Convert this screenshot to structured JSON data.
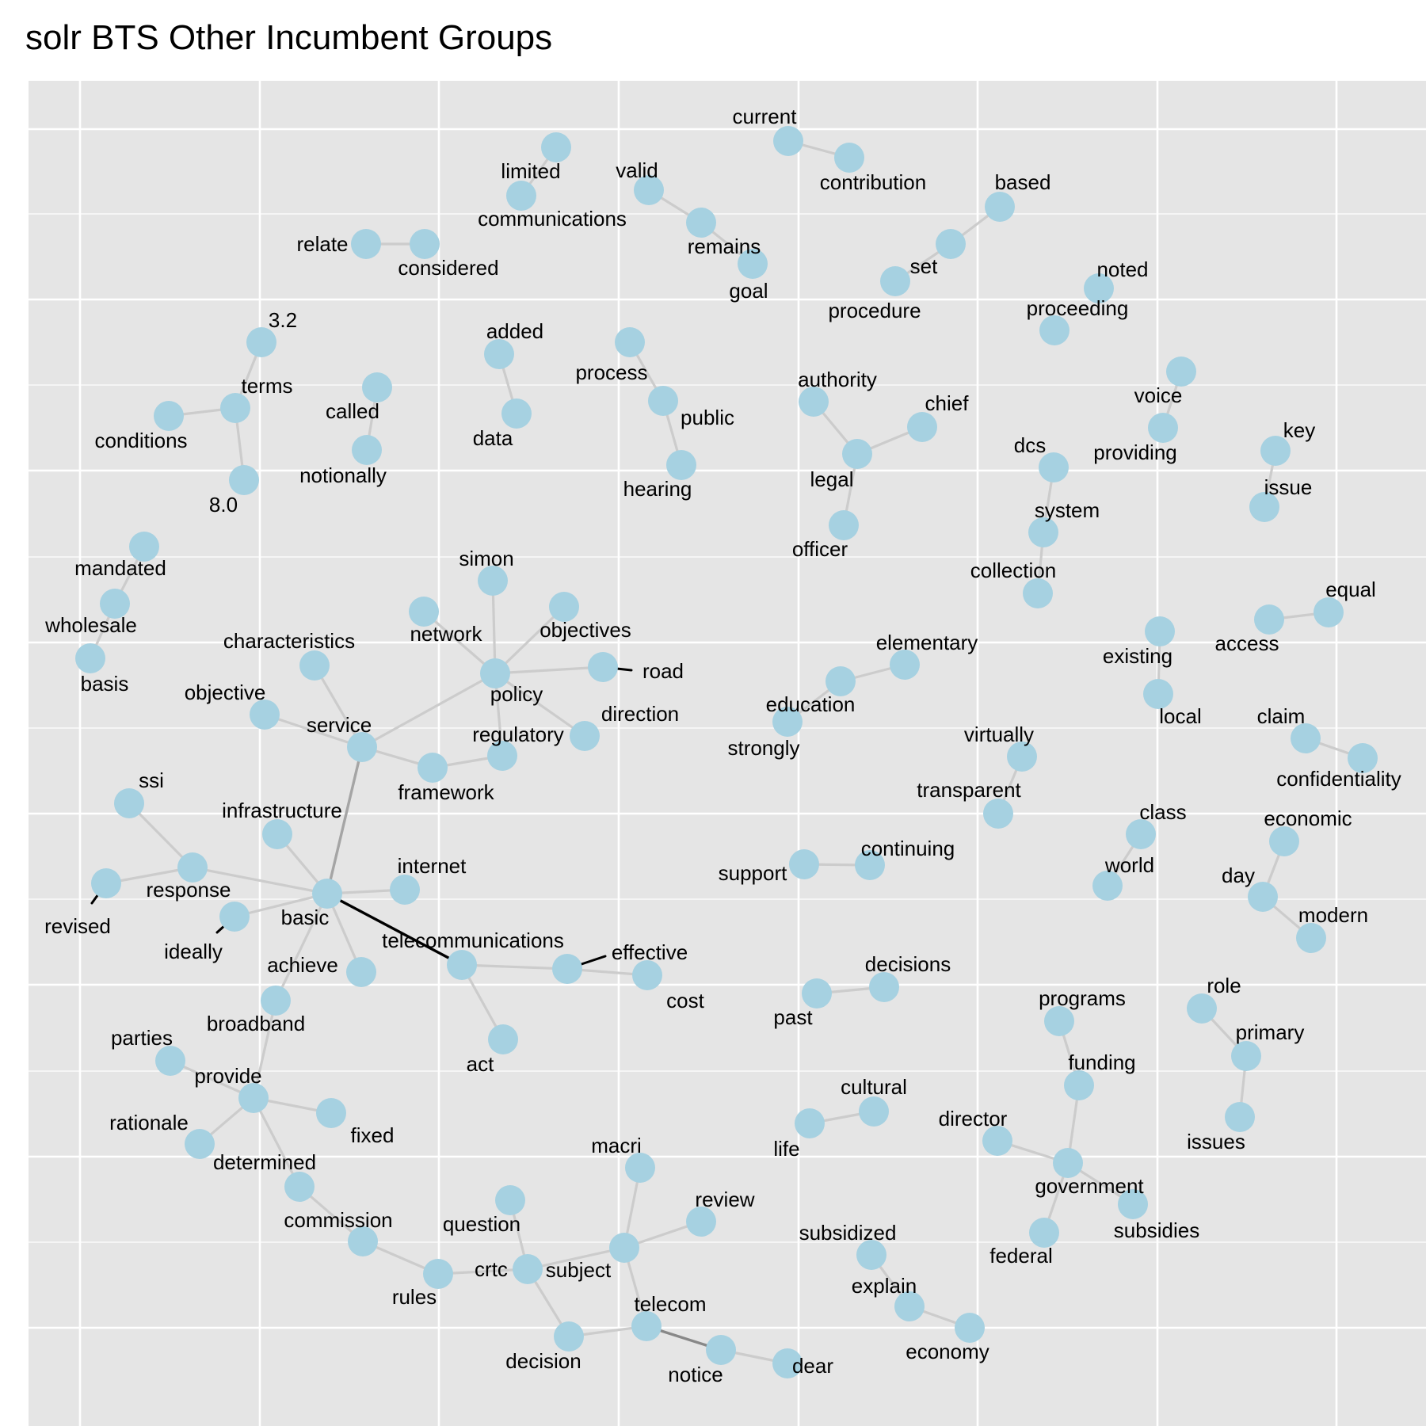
{
  "title": "solr BTS Other Incumbent Groups",
  "colors": {
    "panel": "#e5e5e5",
    "node": "#a6d1e1",
    "edge_light": "#cccccc",
    "edge_mid": "#a5a5a5",
    "edge_dark": "#888888",
    "leader": "#000000"
  },
  "nodes": [
    {
      "id": "current"
    },
    {
      "id": "contribution"
    },
    {
      "id": "limited"
    },
    {
      "id": "communications"
    },
    {
      "id": "relate"
    },
    {
      "id": "considered"
    },
    {
      "id": "valid"
    },
    {
      "id": "remains"
    },
    {
      "id": "goal"
    },
    {
      "id": "based"
    },
    {
      "id": "set"
    },
    {
      "id": "procedure"
    },
    {
      "id": "noted"
    },
    {
      "id": "proceeding"
    },
    {
      "id": "3.2"
    },
    {
      "id": "terms"
    },
    {
      "id": "conditions"
    },
    {
      "id": "8.0"
    },
    {
      "id": "called"
    },
    {
      "id": "notionally"
    },
    {
      "id": "added"
    },
    {
      "id": "data"
    },
    {
      "id": "process"
    },
    {
      "id": "public"
    },
    {
      "id": "hearing"
    },
    {
      "id": "authority"
    },
    {
      "id": "chief"
    },
    {
      "id": "legal"
    },
    {
      "id": "officer"
    },
    {
      "id": "voice"
    },
    {
      "id": "providing"
    },
    {
      "id": "dcs"
    },
    {
      "id": "system"
    },
    {
      "id": "collection"
    },
    {
      "id": "key"
    },
    {
      "id": "issue"
    },
    {
      "id": "mandated"
    },
    {
      "id": "wholesale"
    },
    {
      "id": "basis"
    },
    {
      "id": "simon"
    },
    {
      "id": "network"
    },
    {
      "id": "objectives"
    },
    {
      "id": "policy"
    },
    {
      "id": "road"
    },
    {
      "id": "direction"
    },
    {
      "id": "regulatory"
    },
    {
      "id": "characteristics"
    },
    {
      "id": "objective"
    },
    {
      "id": "service"
    },
    {
      "id": "framework"
    },
    {
      "id": "elementary"
    },
    {
      "id": "education"
    },
    {
      "id": "strongly"
    },
    {
      "id": "existing"
    },
    {
      "id": "local"
    },
    {
      "id": "access"
    },
    {
      "id": "equal"
    },
    {
      "id": "claim"
    },
    {
      "id": "confidentiality"
    },
    {
      "id": "virtually"
    },
    {
      "id": "transparent"
    },
    {
      "id": "ssi"
    },
    {
      "id": "infrastructure"
    },
    {
      "id": "response"
    },
    {
      "id": "revised"
    },
    {
      "id": "basic"
    },
    {
      "id": "internet"
    },
    {
      "id": "ideally"
    },
    {
      "id": "achieve"
    },
    {
      "id": "telecommunications"
    },
    {
      "id": "effective"
    },
    {
      "id": "cost"
    },
    {
      "id": "act"
    },
    {
      "id": "support"
    },
    {
      "id": "continuing"
    },
    {
      "id": "class"
    },
    {
      "id": "world"
    },
    {
      "id": "economic"
    },
    {
      "id": "day"
    },
    {
      "id": "modern"
    },
    {
      "id": "broadband"
    },
    {
      "id": "decisions"
    },
    {
      "id": "past"
    },
    {
      "id": "programs"
    },
    {
      "id": "funding"
    },
    {
      "id": "role"
    },
    {
      "id": "primary"
    },
    {
      "id": "issues"
    },
    {
      "id": "parties"
    },
    {
      "id": "provide"
    },
    {
      "id": "fixed"
    },
    {
      "id": "rationale"
    },
    {
      "id": "determined"
    },
    {
      "id": "commission"
    },
    {
      "id": "rules"
    },
    {
      "id": "cultural"
    },
    {
      "id": "life"
    },
    {
      "id": "director"
    },
    {
      "id": "government"
    },
    {
      "id": "subsidies"
    },
    {
      "id": "federal"
    },
    {
      "id": "macri"
    },
    {
      "id": "review"
    },
    {
      "id": "question"
    },
    {
      "id": "subject"
    },
    {
      "id": "crtc"
    },
    {
      "id": "telecom"
    },
    {
      "id": "decision"
    },
    {
      "id": "notice"
    },
    {
      "id": "dear"
    },
    {
      "id": "subsidized"
    },
    {
      "id": "explain"
    },
    {
      "id": "economy"
    }
  ],
  "edges": [
    {
      "from": "current",
      "to": "contribution"
    },
    {
      "from": "limited",
      "to": "communications"
    },
    {
      "from": "relate",
      "to": "considered"
    },
    {
      "from": "valid",
      "to": "remains"
    },
    {
      "from": "remains",
      "to": "goal"
    },
    {
      "from": "based",
      "to": "set"
    },
    {
      "from": "set",
      "to": "procedure"
    },
    {
      "from": "3.2",
      "to": "terms"
    },
    {
      "from": "terms",
      "to": "conditions"
    },
    {
      "from": "terms",
      "to": "8.0"
    },
    {
      "from": "called",
      "to": "notionally"
    },
    {
      "from": "added",
      "to": "data"
    },
    {
      "from": "process",
      "to": "public"
    },
    {
      "from": "public",
      "to": "hearing"
    },
    {
      "from": "authority",
      "to": "legal"
    },
    {
      "from": "chief",
      "to": "legal"
    },
    {
      "from": "legal",
      "to": "officer"
    },
    {
      "from": "voice",
      "to": "providing"
    },
    {
      "from": "dcs",
      "to": "system"
    },
    {
      "from": "system",
      "to": "collection"
    },
    {
      "from": "key",
      "to": "issue"
    },
    {
      "from": "mandated",
      "to": "wholesale"
    },
    {
      "from": "wholesale",
      "to": "basis"
    },
    {
      "from": "simon",
      "to": "policy"
    },
    {
      "from": "network",
      "to": "policy"
    },
    {
      "from": "objectives",
      "to": "policy"
    },
    {
      "from": "policy",
      "to": "road"
    },
    {
      "from": "policy",
      "to": "direction"
    },
    {
      "from": "policy",
      "to": "regulatory"
    },
    {
      "from": "policy",
      "to": "service"
    },
    {
      "from": "characteristics",
      "to": "service"
    },
    {
      "from": "objective",
      "to": "service"
    },
    {
      "from": "service",
      "to": "framework"
    },
    {
      "from": "framework",
      "to": "regulatory"
    },
    {
      "from": "service",
      "to": "basic",
      "weight": "mid"
    },
    {
      "from": "elementary",
      "to": "education"
    },
    {
      "from": "education",
      "to": "strongly"
    },
    {
      "from": "existing",
      "to": "local"
    },
    {
      "from": "access",
      "to": "equal"
    },
    {
      "from": "claim",
      "to": "confidentiality"
    },
    {
      "from": "virtually",
      "to": "transparent"
    },
    {
      "from": "ssi",
      "to": "response"
    },
    {
      "from": "response",
      "to": "revised"
    },
    {
      "from": "response",
      "to": "basic"
    },
    {
      "from": "infrastructure",
      "to": "basic"
    },
    {
      "from": "basic",
      "to": "internet"
    },
    {
      "from": "basic",
      "to": "ideally"
    },
    {
      "from": "basic",
      "to": "achieve"
    },
    {
      "from": "basic",
      "to": "broadband"
    },
    {
      "from": "basic",
      "to": "telecommunications",
      "weight": "dark"
    },
    {
      "from": "telecommunications",
      "to": "effective"
    },
    {
      "from": "effective",
      "to": "cost"
    },
    {
      "from": "telecommunications",
      "to": "act"
    },
    {
      "from": "support",
      "to": "continuing"
    },
    {
      "from": "class",
      "to": "world"
    },
    {
      "from": "economic",
      "to": "day"
    },
    {
      "from": "day",
      "to": "modern"
    },
    {
      "from": "broadband",
      "to": "provide"
    },
    {
      "from": "past",
      "to": "decisions"
    },
    {
      "from": "programs",
      "to": "funding"
    },
    {
      "from": "funding",
      "to": "government"
    },
    {
      "from": "role",
      "to": "primary"
    },
    {
      "from": "primary",
      "to": "issues"
    },
    {
      "from": "parties",
      "to": "provide"
    },
    {
      "from": "provide",
      "to": "fixed"
    },
    {
      "from": "provide",
      "to": "rationale"
    },
    {
      "from": "provide",
      "to": "determined"
    },
    {
      "from": "determined",
      "to": "commission"
    },
    {
      "from": "commission",
      "to": "rules"
    },
    {
      "from": "rules",
      "to": "crtc"
    },
    {
      "from": "life",
      "to": "cultural"
    },
    {
      "from": "director",
      "to": "government"
    },
    {
      "from": "government",
      "to": "subsidies"
    },
    {
      "from": "government",
      "to": "federal"
    },
    {
      "from": "macri",
      "to": "subject"
    },
    {
      "from": "subject",
      "to": "review"
    },
    {
      "from": "subject",
      "to": "crtc"
    },
    {
      "from": "question",
      "to": "crtc"
    },
    {
      "from": "subject",
      "to": "telecom"
    },
    {
      "from": "crtc",
      "to": "decision"
    },
    {
      "from": "decision",
      "to": "telecom"
    },
    {
      "from": "telecom",
      "to": "notice",
      "weight": "dark"
    },
    {
      "from": "notice",
      "to": "dear"
    },
    {
      "from": "subsidized",
      "to": "explain"
    },
    {
      "from": "explain",
      "to": "economy"
    }
  ]
}
